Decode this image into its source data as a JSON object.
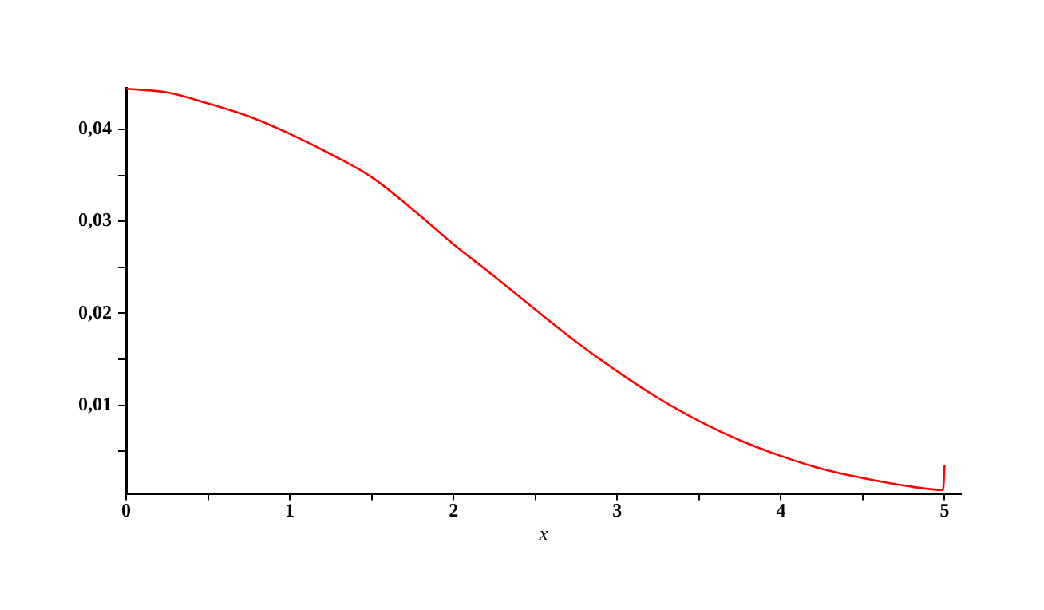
{
  "chart_data": {
    "type": "line",
    "xlabel": "x",
    "x": [
      0,
      0.25,
      0.5,
      0.75,
      1,
      1.25,
      1.5,
      1.75,
      2,
      2.25,
      2.5,
      2.75,
      3,
      3.25,
      3.5,
      3.75,
      4,
      4.25,
      4.5,
      4.75,
      4.99,
      5
    ],
    "series": [
      {
        "color": "#ff0000",
        "values": [
          0.0444,
          0.044,
          0.0428,
          0.0414,
          0.0395,
          0.0373,
          0.0348,
          0.0313,
          0.0275,
          0.024,
          0.0204,
          0.0169,
          0.0137,
          0.0108,
          0.0083,
          0.0062,
          0.0045,
          0.0031,
          0.0021,
          0.0013,
          0.0008,
          0.0035
        ]
      }
    ],
    "xlim": [
      0,
      5.1
    ],
    "ylim": [
      0.0004,
      0.0445
    ],
    "xticks": [
      0,
      {
        "value": 0.5,
        "label": null
      },
      1,
      {
        "value": 1.5,
        "label": null
      },
      2,
      {
        "value": 2.5,
        "label": null
      },
      3,
      {
        "value": 3.5,
        "label": null
      },
      4,
      {
        "value": 4.5,
        "label": null
      },
      5
    ],
    "yticks": [
      {
        "value": 0.005,
        "label": null
      },
      {
        "value": 0.01,
        "label": "0,01"
      },
      {
        "value": 0.015,
        "label": null
      },
      {
        "value": 0.02,
        "label": "0,02"
      },
      {
        "value": 0.025,
        "label": null
      },
      {
        "value": 0.03,
        "label": "0,03"
      },
      {
        "value": 0.035,
        "label": null
      },
      {
        "value": 0.04,
        "label": "0,04"
      }
    ],
    "legend": false,
    "marker": "none",
    "line_style": "solid"
  }
}
